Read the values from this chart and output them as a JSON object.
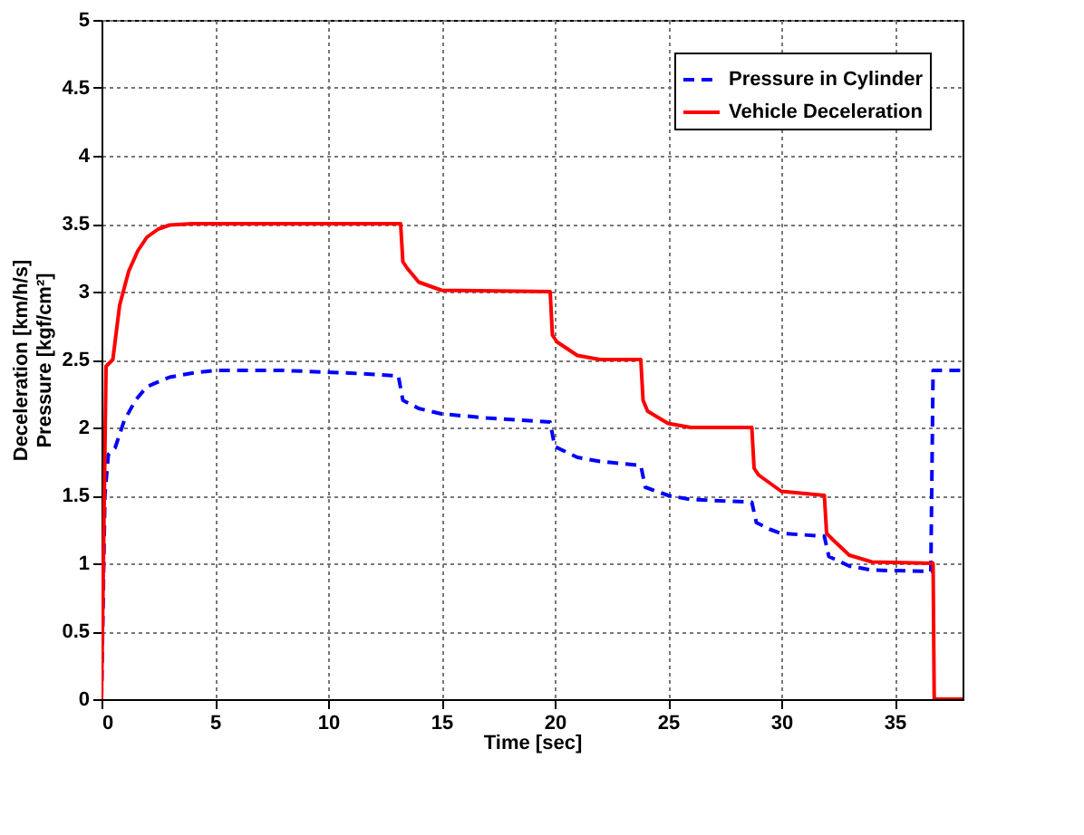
{
  "chart_data": {
    "type": "line",
    "xlabel": "Time [sec]",
    "ylabel": [
      "Deceleration [km/h/s]",
      "Pressure [kgf/cm²]"
    ],
    "xlim": [
      0,
      38
    ],
    "xticks": [
      0,
      5,
      10,
      15,
      20,
      25,
      30,
      35
    ],
    "ylim": [
      0,
      5
    ],
    "yticks": [
      0,
      0.5,
      1,
      1.5,
      2,
      2.5,
      3,
      3.5,
      4,
      4.5,
      5
    ],
    "grid": true,
    "legend": "top right",
    "series": [
      {
        "name": "Pressure in Cylinder",
        "color": "#0000ff",
        "line_style": "dashed",
        "x": [
          0,
          0.15,
          0.3,
          0.6,
          1,
          1.5,
          2,
          3,
          4,
          5,
          8,
          11,
          13.1,
          13.3,
          14,
          15,
          17,
          19.8,
          20,
          21,
          22,
          23.8,
          24,
          25,
          26,
          28.7,
          28.9,
          29.5,
          30,
          31.9,
          32.1,
          33,
          34,
          36.6,
          36.7,
          38
        ],
        "values": [
          0,
          1.5,
          1.8,
          1.85,
          2.05,
          2.2,
          2.3,
          2.37,
          2.4,
          2.42,
          2.42,
          2.4,
          2.38,
          2.2,
          2.14,
          2.1,
          2.07,
          2.04,
          1.86,
          1.78,
          1.75,
          1.72,
          1.56,
          1.5,
          1.47,
          1.45,
          1.3,
          1.25,
          1.22,
          1.2,
          1.05,
          0.98,
          0.95,
          0.94,
          2.42,
          2.42
        ]
      },
      {
        "name": "Vehicle Deceleration",
        "color": "#ff0000",
        "line_style": "solid",
        "x": [
          0,
          0.1,
          0.2,
          0.5,
          0.8,
          1.2,
          1.6,
          2,
          2.5,
          3,
          4,
          5,
          13.2,
          13.3,
          13.5,
          14,
          15,
          19.8,
          19.9,
          20.1,
          21,
          22,
          23.8,
          23.9,
          24.1,
          25,
          26,
          28.7,
          28.8,
          29,
          30,
          31.9,
          32,
          32.3,
          33,
          34,
          36.7,
          36.75,
          38
        ],
        "values": [
          0,
          1.2,
          2.45,
          2.5,
          2.9,
          3.15,
          3.3,
          3.4,
          3.46,
          3.49,
          3.5,
          3.5,
          3.5,
          3.22,
          3.17,
          3.07,
          3.01,
          3.0,
          2.68,
          2.63,
          2.53,
          2.5,
          2.5,
          2.2,
          2.12,
          2.03,
          2.0,
          2.0,
          1.7,
          1.65,
          1.53,
          1.5,
          1.22,
          1.17,
          1.06,
          1.01,
          1.0,
          0,
          0
        ]
      }
    ]
  }
}
